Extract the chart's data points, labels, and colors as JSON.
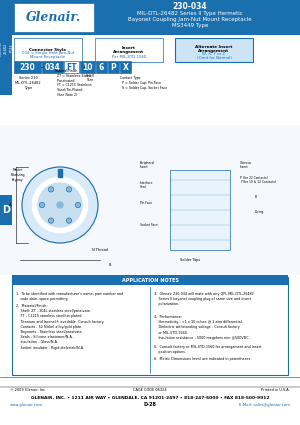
{
  "title_part": "230-034",
  "title_line2": "MIL-DTL-26482 Series II Type Hermetic",
  "title_line3": "Bayonet Coupling Jam-Nut Mount Receptacle",
  "title_line4": "MS3449 Type",
  "header_bg": "#1a6faf",
  "header_text_color": "#ffffff",
  "logo_text": "Glenair.",
  "side_label": "MIL-DTL-\n26482\nFT44",
  "part_number_boxes": [
    "230",
    "034",
    "FT",
    "10",
    "6",
    "P",
    "X"
  ],
  "box_colors": [
    "#1a6faf",
    "#1a6faf",
    "#ffffff",
    "#1a6faf",
    "#1a6faf",
    "#1a6faf",
    "#1a6faf"
  ],
  "box_text_colors": [
    "#ffffff",
    "#ffffff",
    "#1a6faf",
    "#ffffff",
    "#ffffff",
    "#ffffff",
    "#ffffff"
  ],
  "label1_title": "Connector Style",
  "label1_text": "034 = Single Hole Jam-Nut\nMount Receptacle",
  "label2_title": "Insert\nArrangement",
  "label2_text": "Per MIL-STD-1560",
  "label3_title": "Alternate Insert\nArrangement",
  "label3_text": "W, X, Y or Z\n(Omit for Normal)",
  "label3_highlight": true,
  "sublabel1_title": "Series 230\nMIL-DTL-26482\nType",
  "sublabel2_title": "Material/Finish",
  "sublabel2_text": "ZT = Stainless Steel/\nPassivated\nFT = C1215 Stainless\nSteel/Tin-Plated\n(See Note 2)",
  "sublabel3_title": "Shell\nSize",
  "sublabel4_title": "Contact Type",
  "sublabel4_text": "P = Solder Cup, Pin Face\nS = Solder Cup, Socket Face",
  "section_d_color": "#1a6faf",
  "notes_bg": "#d0e8f8",
  "notes_title": "APPLICATION NOTES",
  "note1": "1.  To be identified with manufacturer's name, part number and\n    code date, space permitting.",
  "note2": "2.  Material/Finish:\n    Shell: ZT - 304L stainless steel/passivate.\n    FT - C1215 stainless steel/tin plated.\n    Titanium and Inconel® available. Consult factory.\n    Contacts - 52 Nickel alloy/gold plate.\n    Bayonets - Stainless steel/passivate.\n    Seals - Silicone elastomer/N.A.\n    Insulation - Glass/N.A.\n    Socket insulator - Rigid dielectric/N.A.",
  "note3": "3.  Glenair 230-034 will mate with any QPL MIL-DTL-26482\n    Series II bayonet coupling plug of same size and insert\n    polarization.",
  "note4": "4.  Performance:\n    Hermeticity - <1 x 10 cc/sec @ 1 atm differential.\n    Dielectric withstanding voltage - Consult factory\n    or MIL-STD-1560.\n    Insulation resistance - 5000 megohms min @500VDC.",
  "note5": "5.  Consult factory or MIL-STD-1560 for arrangement and insert\n    position options.",
  "note6": "6.  Metric Dimensions (mm) are indicated in parentheses.",
  "footer_copyright": "© 2009 Glenair, Inc.",
  "footer_cage": "CAGE CODE 06324",
  "footer_printed": "Printed in U.S.A.",
  "footer_address": "GLENAIR, INC. • 1211 AIR WAY • GLENDALE, CA 91201-2497 • 818-247-6000 • FAX 818-500-9912",
  "footer_web": "www.glenair.com",
  "footer_page": "D-28",
  "footer_email": "E-Mail: sales@glenair.com",
  "bg_color": "#ffffff",
  "light_blue": "#cce4f5",
  "medium_blue": "#1a6faf",
  "border_color": "#1a6faf"
}
